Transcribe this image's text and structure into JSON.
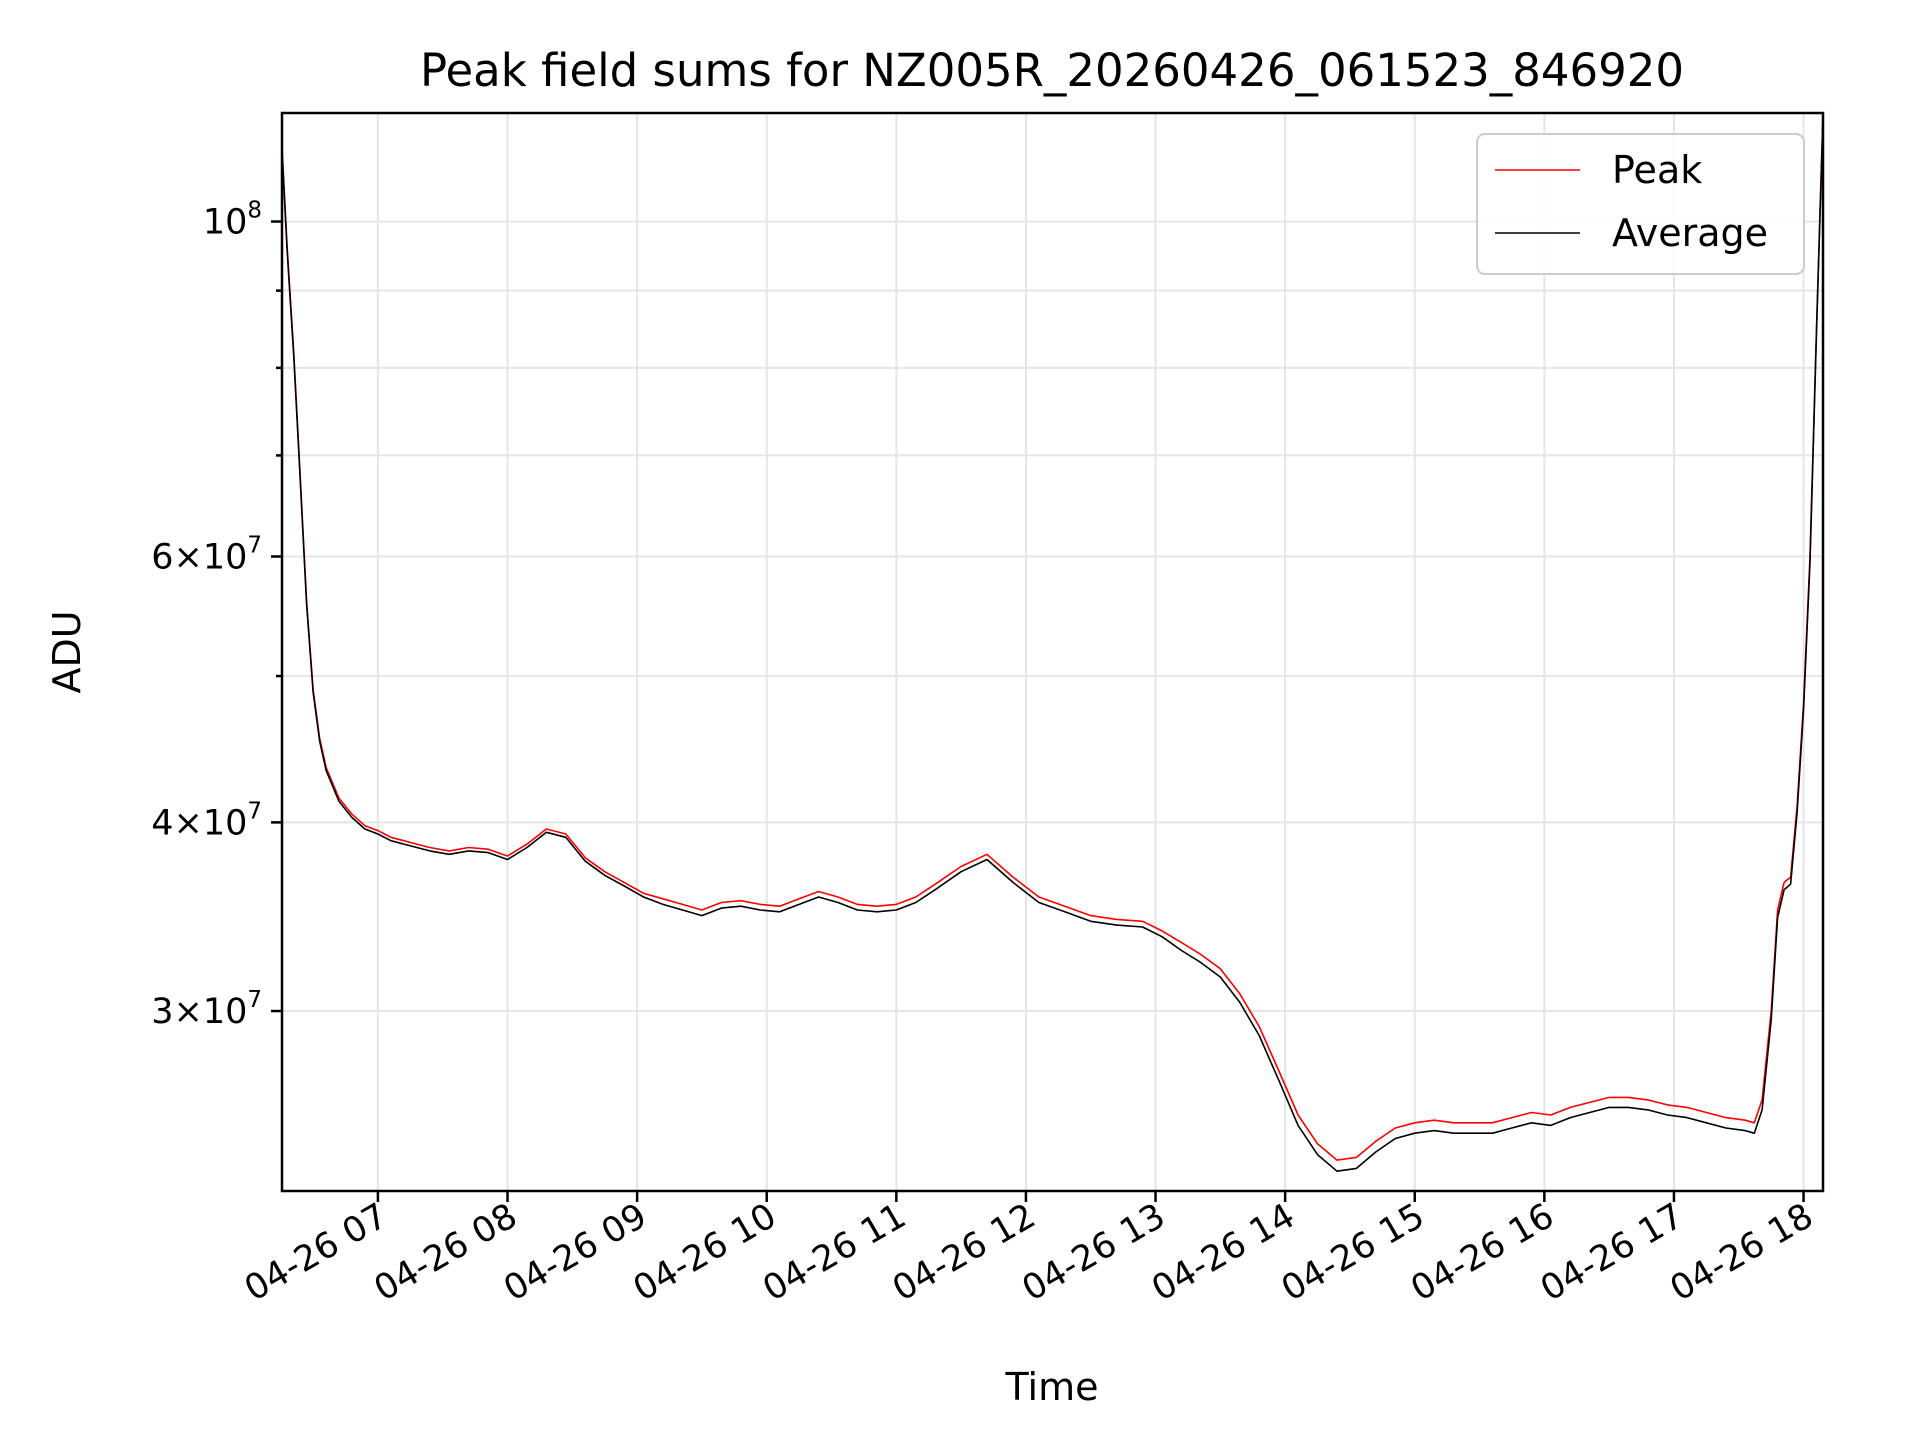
{
  "chart_data": {
    "type": "line",
    "title": "Peak field sums for NZ005R_20260426_061523_846920",
    "xlabel": "Time",
    "ylabel": "ADU",
    "yscale": "log",
    "grid": true,
    "legend_position": "top-right",
    "x_unit": "hours since 04-26 06:00",
    "xlim": [
      6.26,
      18.15
    ],
    "ylim": [
      22800000,
      118000000
    ],
    "x_ticks": [
      {
        "value": 7,
        "label": "04-26 07"
      },
      {
        "value": 8,
        "label": "04-26 08"
      },
      {
        "value": 9,
        "label": "04-26 09"
      },
      {
        "value": 10,
        "label": "04-26 10"
      },
      {
        "value": 11,
        "label": "04-26 11"
      },
      {
        "value": 12,
        "label": "04-26 12"
      },
      {
        "value": 13,
        "label": "04-26 13"
      },
      {
        "value": 14,
        "label": "04-26 14"
      },
      {
        "value": 15,
        "label": "04-26 15"
      },
      {
        "value": 16,
        "label": "04-26 16"
      },
      {
        "value": 17,
        "label": "04-26 17"
      },
      {
        "value": 18,
        "label": "04-26 18"
      }
    ],
    "y_major_ticks": [
      {
        "value": 100000000,
        "base": "10",
        "exp": "8",
        "mant": ""
      },
      {
        "value": 60000000,
        "base": "10",
        "exp": "7",
        "mant": "6"
      },
      {
        "value": 40000000,
        "base": "10",
        "exp": "7",
        "mant": "4"
      },
      {
        "value": 30000000,
        "base": "10",
        "exp": "7",
        "mant": "3"
      }
    ],
    "y_minor_ticks": [
      90000000,
      80000000,
      70000000,
      50000000
    ],
    "series": [
      {
        "name": "Peak",
        "color": "#ff0000",
        "x": [
          6.26,
          6.3,
          6.35,
          6.4,
          6.45,
          6.5,
          6.55,
          6.6,
          6.7,
          6.8,
          6.9,
          7.0,
          7.1,
          7.2,
          7.3,
          7.4,
          7.55,
          7.7,
          7.85,
          8.0,
          8.15,
          8.3,
          8.45,
          8.6,
          8.75,
          8.9,
          9.05,
          9.2,
          9.35,
          9.5,
          9.65,
          9.8,
          9.95,
          10.1,
          10.25,
          10.4,
          10.55,
          10.7,
          10.85,
          11.0,
          11.15,
          11.3,
          11.5,
          11.7,
          11.9,
          12.1,
          12.3,
          12.5,
          12.7,
          12.9,
          13.05,
          13.2,
          13.35,
          13.5,
          13.65,
          13.8,
          13.95,
          14.1,
          14.25,
          14.4,
          14.55,
          14.7,
          14.85,
          15.0,
          15.15,
          15.3,
          15.45,
          15.6,
          15.75,
          15.9,
          16.05,
          16.2,
          16.35,
          16.5,
          16.65,
          16.8,
          16.95,
          17.1,
          17.25,
          17.4,
          17.55,
          17.62,
          17.68,
          17.75,
          17.8,
          17.85,
          17.9,
          17.95,
          18.0,
          18.05,
          18.1,
          18.15
        ],
        "y": [
          112000000,
          96000000,
          82000000,
          68000000,
          56000000,
          49000000,
          45500000,
          43500000,
          41500000,
          40500000,
          39800000,
          39500000,
          39100000,
          38900000,
          38700000,
          38500000,
          38300000,
          38500000,
          38400000,
          38000000,
          38700000,
          39600000,
          39300000,
          37900000,
          37100000,
          36500000,
          35900000,
          35600000,
          35300000,
          35000000,
          35400000,
          35500000,
          35300000,
          35200000,
          35600000,
          36000000,
          35700000,
          35300000,
          35200000,
          35300000,
          35700000,
          36400000,
          37400000,
          38100000,
          36800000,
          35700000,
          35200000,
          34700000,
          34500000,
          34400000,
          33900000,
          33300000,
          32700000,
          32000000,
          30800000,
          29300000,
          27400000,
          25600000,
          24500000,
          23900000,
          24000000,
          24600000,
          25100000,
          25300000,
          25400000,
          25300000,
          25300000,
          25300000,
          25500000,
          25700000,
          25600000,
          25900000,
          26100000,
          26300000,
          26300000,
          26200000,
          26000000,
          25900000,
          25700000,
          25500000,
          25400000,
          25300000,
          26200000,
          30000000,
          35000000,
          36500000,
          36800000,
          41000000,
          48000000,
          60000000,
          85000000,
          118000000
        ]
      },
      {
        "name": "Average",
        "color": "#000000",
        "x": [
          6.26,
          6.3,
          6.35,
          6.4,
          6.45,
          6.5,
          6.55,
          6.6,
          6.7,
          6.8,
          6.9,
          7.0,
          7.1,
          7.2,
          7.3,
          7.4,
          7.55,
          7.7,
          7.85,
          8.0,
          8.15,
          8.3,
          8.45,
          8.6,
          8.75,
          8.9,
          9.05,
          9.2,
          9.35,
          9.5,
          9.65,
          9.8,
          9.95,
          10.1,
          10.25,
          10.4,
          10.55,
          10.7,
          10.85,
          11.0,
          11.15,
          11.3,
          11.5,
          11.7,
          11.9,
          12.1,
          12.3,
          12.5,
          12.7,
          12.9,
          13.05,
          13.2,
          13.35,
          13.5,
          13.65,
          13.8,
          13.95,
          14.1,
          14.25,
          14.4,
          14.55,
          14.7,
          14.85,
          15.0,
          15.15,
          15.3,
          15.45,
          15.6,
          15.75,
          15.9,
          16.05,
          16.2,
          16.35,
          16.5,
          16.65,
          16.8,
          16.95,
          17.1,
          17.25,
          17.4,
          17.55,
          17.62,
          17.68,
          17.75,
          17.8,
          17.85,
          17.9,
          17.95,
          18.0,
          18.05,
          18.1,
          18.15
        ],
        "y": [
          111500000,
          95500000,
          81600000,
          67700000,
          55800000,
          48800000,
          45300000,
          43300000,
          41300000,
          40300000,
          39600000,
          39300000,
          38900000,
          38700000,
          38500000,
          38300000,
          38100000,
          38300000,
          38200000,
          37800000,
          38500000,
          39400000,
          39100000,
          37700000,
          36900000,
          36300000,
          35700000,
          35300000,
          35000000,
          34700000,
          35100000,
          35200000,
          35000000,
          34900000,
          35300000,
          35700000,
          35400000,
          35000000,
          34900000,
          35000000,
          35400000,
          36100000,
          37100000,
          37800000,
          36500000,
          35400000,
          34900000,
          34400000,
          34200000,
          34100000,
          33600000,
          32900000,
          32300000,
          31600000,
          30400000,
          28900000,
          27000000,
          25200000,
          24100000,
          23500000,
          23600000,
          24200000,
          24700000,
          24900000,
          25000000,
          24900000,
          24900000,
          24900000,
          25100000,
          25300000,
          25200000,
          25500000,
          25700000,
          25900000,
          25900000,
          25800000,
          25600000,
          25500000,
          25300000,
          25100000,
          25000000,
          24900000,
          25800000,
          29600000,
          34600000,
          36100000,
          36400000,
          40600000,
          47600000,
          59500000,
          84500000,
          117500000
        ]
      }
    ]
  }
}
